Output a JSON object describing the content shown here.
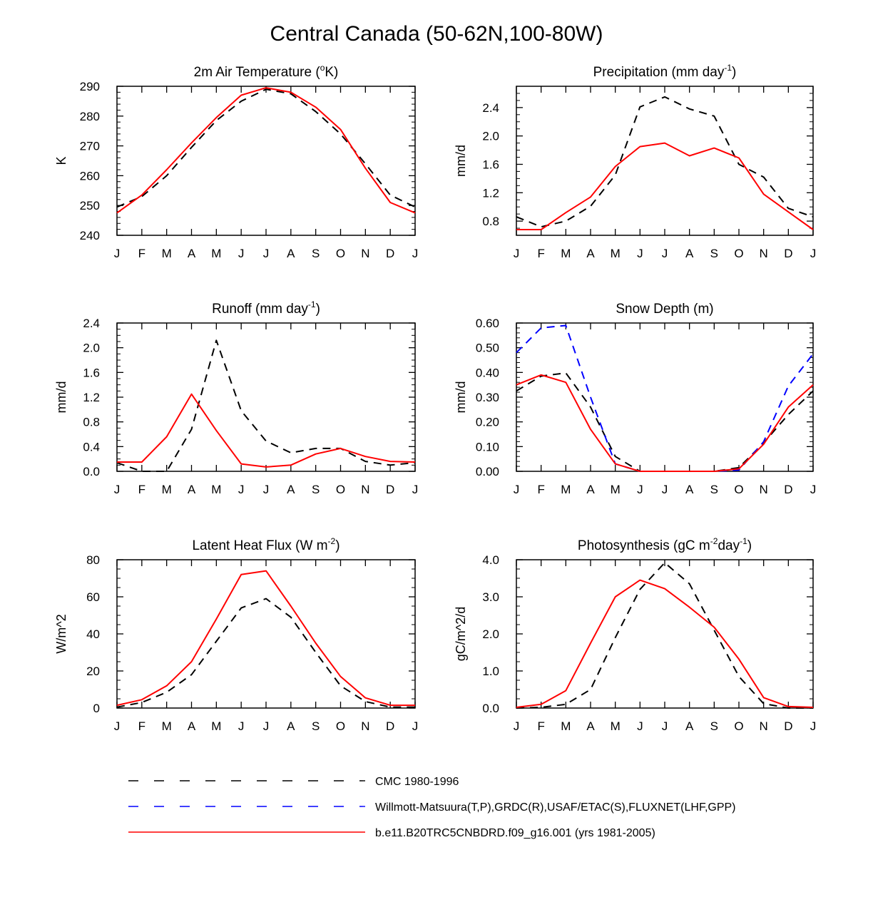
{
  "figure_title": "Central Canada (50-62N,100-80W)",
  "colors": {
    "cmc": "#000000",
    "obs": "#0000ff",
    "model": "#ff0000"
  },
  "legend": [
    {
      "key": "cmc",
      "label": "CMC 1980-1996",
      "style": "dashed"
    },
    {
      "key": "obs",
      "label": "Willmott-Matsuura(T,P),GRDC(R),USAF/ETAC(S),FLUXNET(LHF,GPP)",
      "style": "dashed"
    },
    {
      "key": "model",
      "label": "b.e11.B20TRC5CNBDRD.f09_g16.001 (yrs 1981-2005)",
      "style": "solid"
    }
  ],
  "chart_data": [
    {
      "type": "line",
      "title": "2m Air Temperature (°K)",
      "title_parts": {
        "main": "2m Air Temperature (",
        "sup": "o",
        "tail": "K)"
      },
      "xlabel": "",
      "ylabel": "K",
      "categories": [
        "J",
        "F",
        "M",
        "A",
        "M",
        "J",
        "J",
        "A",
        "S",
        "O",
        "N",
        "D",
        "J"
      ],
      "ylim": [
        240,
        290
      ],
      "yticks": [
        240,
        250,
        260,
        270,
        280,
        290
      ],
      "ytick_labels": [
        "240",
        "250",
        "260",
        "270",
        "280",
        "290"
      ],
      "yminor": 4,
      "series": [
        {
          "name": "CMC 1980-1996",
          "key": "cmc",
          "values": [
            249.5,
            253,
            260,
            269.5,
            278.5,
            285,
            289,
            287.5,
            281.5,
            274,
            264,
            253.5,
            249.5
          ]
        },
        {
          "name": "b.e11.B20TRC5CNBDRD.f09_g16.001 (yrs 1981-2005)",
          "key": "model",
          "values": [
            247.5,
            253.5,
            262,
            271,
            279.5,
            287,
            289.5,
            288,
            283,
            275.5,
            262.5,
            251,
            247.5
          ]
        }
      ]
    },
    {
      "type": "line",
      "title": "Precipitation (mm day-1)",
      "title_parts": {
        "main": "Precipitation (mm day",
        "sup": "-1",
        "tail": ")"
      },
      "xlabel": "",
      "ylabel": "mm/d",
      "categories": [
        "J",
        "F",
        "M",
        "A",
        "M",
        "J",
        "J",
        "A",
        "S",
        "O",
        "N",
        "D",
        "J"
      ],
      "ylim": [
        0.6,
        2.7
      ],
      "yticks": [
        0.8,
        1.2,
        1.6,
        2.0,
        2.4
      ],
      "ytick_labels": [
        "0.8",
        "1.2",
        "1.6",
        "2.0",
        "2.4"
      ],
      "yminor": 3,
      "series": [
        {
          "name": "CMC 1980-1996",
          "key": "cmc",
          "values": [
            0.86,
            0.72,
            0.8,
            1.01,
            1.45,
            2.41,
            2.55,
            2.38,
            2.28,
            1.6,
            1.42,
            0.98,
            0.86
          ]
        },
        {
          "name": "b.e11.B20TRC5CNBDRD.f09_g16.001 (yrs 1981-2005)",
          "key": "model",
          "values": [
            0.68,
            0.68,
            0.92,
            1.14,
            1.57,
            1.85,
            1.9,
            1.72,
            1.83,
            1.69,
            1.18,
            0.93,
            0.68
          ]
        }
      ]
    },
    {
      "type": "line",
      "title": "Runoff (mm day-1)",
      "title_parts": {
        "main": "Runoff (mm day",
        "sup": "-1",
        "tail": ")"
      },
      "xlabel": "",
      "ylabel": "mm/d",
      "categories": [
        "J",
        "F",
        "M",
        "A",
        "M",
        "J",
        "J",
        "A",
        "S",
        "O",
        "N",
        "D",
        "J"
      ],
      "ylim": [
        0,
        2.4
      ],
      "yticks": [
        0.0,
        0.4,
        0.8,
        1.2,
        1.6,
        2.0,
        2.4
      ],
      "ytick_labels": [
        "0.0",
        "0.4",
        "0.8",
        "1.2",
        "1.6",
        "2.0",
        "2.4"
      ],
      "yminor": 3,
      "series": [
        {
          "name": "CMC 1980-1996",
          "key": "cmc",
          "values": [
            0.14,
            0.0,
            0.0,
            0.68,
            2.12,
            0.98,
            0.49,
            0.3,
            0.37,
            0.37,
            0.16,
            0.1,
            0.14
          ]
        },
        {
          "name": "b.e11.B20TRC5CNBDRD.f09_g16.001 (yrs 1981-2005)",
          "key": "model",
          "values": [
            0.15,
            0.15,
            0.56,
            1.25,
            0.66,
            0.12,
            0.07,
            0.1,
            0.28,
            0.37,
            0.24,
            0.16,
            0.15
          ]
        }
      ]
    },
    {
      "type": "line",
      "title": "Snow Depth (m)",
      "title_parts": {
        "main": "Snow Depth (m)",
        "sup": "",
        "tail": ""
      },
      "xlabel": "",
      "ylabel": "mm/d",
      "categories": [
        "J",
        "F",
        "M",
        "A",
        "M",
        "J",
        "J",
        "A",
        "S",
        "O",
        "N",
        "D",
        "J"
      ],
      "ylim": [
        0,
        0.6
      ],
      "yticks": [
        0.0,
        0.1,
        0.2,
        0.3,
        0.4,
        0.5,
        0.6
      ],
      "ytick_labels": [
        "0.00",
        "0.10",
        "0.20",
        "0.30",
        "0.40",
        "0.50",
        "0.60"
      ],
      "yminor": 4,
      "series": [
        {
          "name": "CMC 1980-1996",
          "key": "cmc",
          "values": [
            0.325,
            0.385,
            0.398,
            0.26,
            0.06,
            0.0,
            0.0,
            0.0,
            0.0,
            0.015,
            0.115,
            0.23,
            0.325
          ]
        },
        {
          "name": "Willmott-Matsuura(T,P),GRDC(R),USAF/ETAC(S),FLUXNET(LHF,GPP)",
          "key": "obs",
          "values": [
            0.48,
            0.58,
            0.59,
            0.3,
            0.03,
            0.0,
            0.0,
            0.0,
            0.0,
            0.005,
            0.12,
            0.345,
            0.475
          ]
        },
        {
          "name": "b.e11.B20TRC5CNBDRD.f09_g16.001 (yrs 1981-2005)",
          "key": "model",
          "values": [
            0.35,
            0.39,
            0.36,
            0.17,
            0.03,
            0.0,
            0.0,
            0.0,
            0.0,
            0.01,
            0.11,
            0.26,
            0.35
          ]
        }
      ]
    },
    {
      "type": "line",
      "title": "Latent Heat Flux (W m-2)",
      "title_parts": {
        "main": "Latent Heat Flux (W m",
        "sup": "-2",
        "tail": ")"
      },
      "xlabel": "",
      "ylabel": "W/m^2",
      "categories": [
        "J",
        "F",
        "M",
        "A",
        "M",
        "J",
        "J",
        "A",
        "S",
        "O",
        "N",
        "D",
        "J"
      ],
      "ylim": [
        0,
        80
      ],
      "yticks": [
        0,
        20,
        40,
        60,
        80
      ],
      "ytick_labels": [
        "0",
        "20",
        "40",
        "60",
        "80"
      ],
      "yminor": 3,
      "series": [
        {
          "name": "CMC 1980-1996",
          "key": "cmc",
          "values": [
            0.5,
            3,
            8.5,
            18,
            36,
            54,
            59,
            49,
            30,
            12,
            3.5,
            0.5,
            0.5
          ]
        },
        {
          "name": "b.e11.B20TRC5CNBDRD.f09_g16.001 (yrs 1981-2005)",
          "key": "model",
          "values": [
            1.5,
            4.5,
            12,
            25,
            48,
            72,
            74,
            55,
            35,
            17,
            5.5,
            1.5,
            1.5
          ]
        }
      ]
    },
    {
      "type": "line",
      "title": "Photosynthesis (gC m-2day-1)",
      "title_parts": {
        "main": "Photosynthesis (gC m",
        "sup": "-2",
        "tail": "day",
        "sup2": "-1",
        "tail2": ")"
      },
      "xlabel": "",
      "ylabel": "gC/m^2/d",
      "categories": [
        "J",
        "F",
        "M",
        "A",
        "M",
        "J",
        "J",
        "A",
        "S",
        "O",
        "N",
        "D",
        "J"
      ],
      "ylim": [
        0,
        4
      ],
      "yticks": [
        0,
        1,
        2,
        3,
        4
      ],
      "ytick_labels": [
        "0.0",
        "1.0",
        "2.0",
        "3.0",
        "4.0"
      ],
      "yminor": 3,
      "series": [
        {
          "name": "CMC 1980-1996",
          "key": "cmc",
          "values": [
            0.0,
            0.02,
            0.1,
            0.5,
            1.9,
            3.2,
            3.92,
            3.35,
            2.1,
            0.85,
            0.12,
            0.0,
            0.0
          ]
        },
        {
          "name": "b.e11.B20TRC5CNBDRD.f09_g16.001 (yrs 1981-2005)",
          "key": "model",
          "values": [
            0.02,
            0.1,
            0.47,
            1.75,
            3.0,
            3.45,
            3.22,
            2.72,
            2.18,
            1.32,
            0.28,
            0.04,
            0.02
          ]
        }
      ]
    }
  ]
}
